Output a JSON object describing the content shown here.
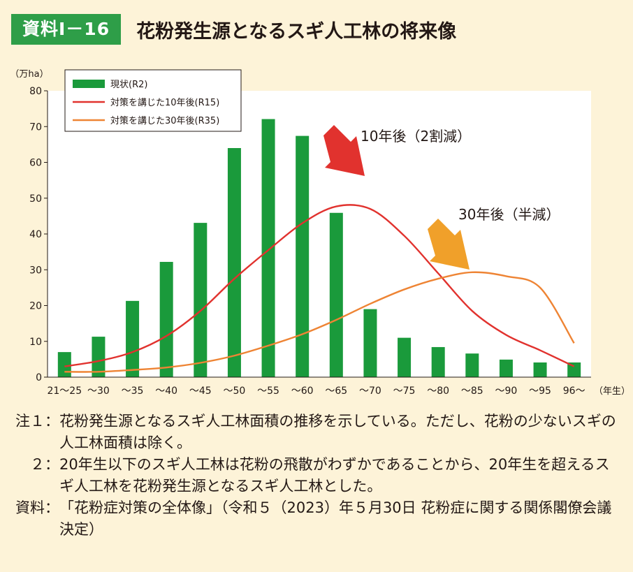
{
  "header": {
    "badge": "資料Ⅰ－16",
    "title": "花粉発生源となるスギ人工林の将来像"
  },
  "chart_data": {
    "type": "bar",
    "ylabel": "（万ha）",
    "xlabel": "（年生）",
    "ylim": [
      0,
      80
    ],
    "yticks": [
      0,
      10,
      20,
      30,
      40,
      50,
      60,
      70,
      80
    ],
    "categories": [
      "21～25",
      "～30",
      "～35",
      "～40",
      "～45",
      "～50",
      "～55",
      "～60",
      "～65",
      "～70",
      "～75",
      "～80",
      "～85",
      "～90",
      "～95",
      "96～"
    ],
    "series": [
      {
        "name": "現状(R2)",
        "type": "bar",
        "color": "#1a9a3b",
        "values": [
          7,
          11.3,
          21.3,
          32.2,
          43.1,
          64,
          72.1,
          67.4,
          45.9,
          19,
          11,
          8.4,
          6.6,
          4.9,
          4.1,
          4.1
        ]
      },
      {
        "name": "対策を講じた10年後(R15)",
        "type": "line",
        "color": "#e1322e",
        "values": [
          3,
          4.5,
          7,
          11.5,
          18.5,
          27.5,
          35.5,
          43,
          47.7,
          47,
          39.5,
          29,
          18.5,
          11.8,
          7.5,
          3
        ]
      },
      {
        "name": "対策を講じた30年後(R35)",
        "type": "line",
        "color": "#ee8434",
        "values": [
          1.5,
          1.5,
          2,
          2.7,
          4,
          6,
          8.8,
          12,
          16,
          20.5,
          24.5,
          27.5,
          29.3,
          28.2,
          25,
          9.5
        ]
      }
    ],
    "legend": "top-left",
    "annotations": [
      {
        "text": "10年後（2割減）",
        "color": "#e1322e"
      },
      {
        "text": "30年後（半減）",
        "color": "#f0a02a"
      }
    ]
  },
  "notes": [
    {
      "label": "注１：",
      "text": "花粉発生源となるスギ人工林面積の推移を示している。ただし、花粉の少ないスギの人工林面積は除く。"
    },
    {
      "label": "　２：",
      "text": "20年生以下のスギ人工林は花粉の飛散がわずかであることから、20年生を超えるスギ人工林を花粉発生源となるスギ人工林とした。"
    },
    {
      "label": "資料：",
      "text": "「花粉症対策の全体像」（令和５（2023）年５月30日 花粉症に関する関係閣僚会議決定）"
    }
  ]
}
